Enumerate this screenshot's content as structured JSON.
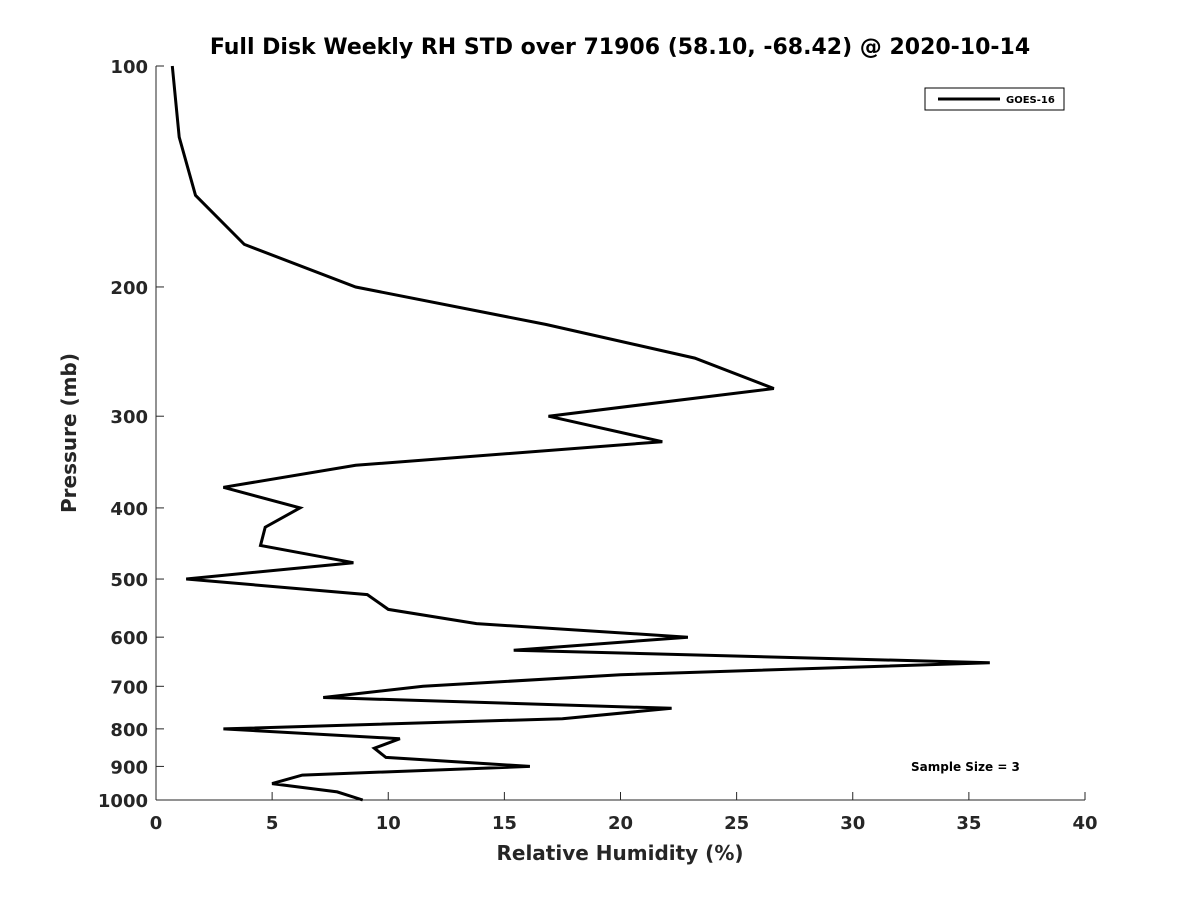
{
  "chart_data": {
    "type": "line",
    "title": "Full Disk Weekly RH STD over 71906 (58.10, -68.42) @ 2020-10-14",
    "xlabel": "Relative Humidity (%)",
    "ylabel": "Pressure (mb)",
    "xlim": [
      0,
      40
    ],
    "ylim": [
      100,
      1000
    ],
    "y_scale": "log",
    "y_reversed": true,
    "x_ticks": [
      "0",
      "5",
      "10",
      "15",
      "20",
      "25",
      "30",
      "35",
      "40"
    ],
    "y_ticks": [
      "100",
      "200",
      "300",
      "400",
      "500",
      "600",
      "700",
      "800",
      "900",
      "1000"
    ],
    "grid": false,
    "legend_position": "top-right",
    "annotation": "Sample Size = 3",
    "series": [
      {
        "name": "GOES-16",
        "color": "#000000",
        "points": [
          {
            "x": 0.7,
            "y": 100
          },
          {
            "x": 1.0,
            "y": 125
          },
          {
            "x": 1.7,
            "y": 150
          },
          {
            "x": 3.8,
            "y": 175
          },
          {
            "x": 8.6,
            "y": 200
          },
          {
            "x": 16.8,
            "y": 225
          },
          {
            "x": 23.2,
            "y": 250
          },
          {
            "x": 26.6,
            "y": 275
          },
          {
            "x": 16.9,
            "y": 300
          },
          {
            "x": 21.8,
            "y": 325
          },
          {
            "x": 8.6,
            "y": 350
          },
          {
            "x": 2.9,
            "y": 375
          },
          {
            "x": 6.2,
            "y": 400
          },
          {
            "x": 4.7,
            "y": 425
          },
          {
            "x": 4.5,
            "y": 450
          },
          {
            "x": 8.5,
            "y": 475
          },
          {
            "x": 1.3,
            "y": 500
          },
          {
            "x": 9.1,
            "y": 525
          },
          {
            "x": 10.0,
            "y": 550
          },
          {
            "x": 13.8,
            "y": 575
          },
          {
            "x": 22.9,
            "y": 600
          },
          {
            "x": 15.4,
            "y": 625
          },
          {
            "x": 35.9,
            "y": 650
          },
          {
            "x": 20.0,
            "y": 675
          },
          {
            "x": 11.5,
            "y": 700
          },
          {
            "x": 7.2,
            "y": 725
          },
          {
            "x": 22.2,
            "y": 750
          },
          {
            "x": 17.5,
            "y": 775
          },
          {
            "x": 2.9,
            "y": 800
          },
          {
            "x": 10.5,
            "y": 825
          },
          {
            "x": 9.4,
            "y": 850
          },
          {
            "x": 9.9,
            "y": 875
          },
          {
            "x": 16.1,
            "y": 900
          },
          {
            "x": 6.3,
            "y": 925
          },
          {
            "x": 5.0,
            "y": 950
          },
          {
            "x": 7.8,
            "y": 975
          },
          {
            "x": 8.9,
            "y": 1000
          }
        ]
      }
    ]
  }
}
